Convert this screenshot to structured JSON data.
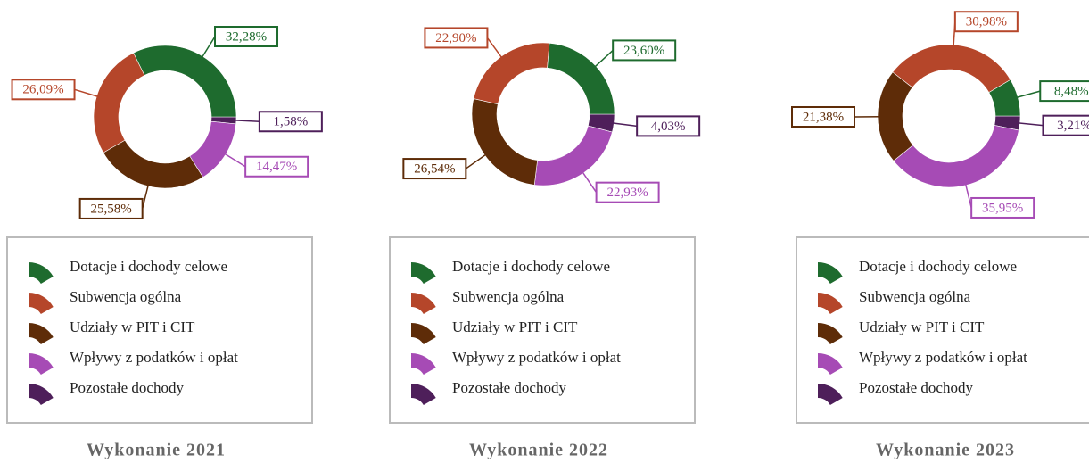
{
  "chart_data": [
    {
      "type": "pie",
      "donut": true,
      "title": "Wykonanie 2021",
      "categories": [
        "Dotacje i dochody celowe",
        "Subwencja ogólna",
        "Udziały w PIT i CIT",
        "Wpływy z podatków i opłat",
        "Pozostałe dochody"
      ],
      "values": [
        32.28,
        26.09,
        25.58,
        14.47,
        1.58
      ],
      "value_labels": [
        "32,28%",
        "26,09%",
        "25,58%",
        "14,47%",
        "1,58%"
      ],
      "colors": [
        "#1e6b2e",
        "#b5462a",
        "#5e2c08",
        "#a64bb5",
        "#4e1f5a"
      ]
    },
    {
      "type": "pie",
      "donut": true,
      "title": "Wykonanie 2022",
      "categories": [
        "Dotacje i dochody celowe",
        "Subwencja ogólna",
        "Udziały w PIT i CIT",
        "Wpływy z podatków i opłat",
        "Pozostałe dochody"
      ],
      "values": [
        23.6,
        22.9,
        26.54,
        22.93,
        4.03
      ],
      "value_labels": [
        "23,60%",
        "22,90%",
        "26,54%",
        "22,93%",
        "4,03%"
      ],
      "colors": [
        "#1e6b2e",
        "#b5462a",
        "#5e2c08",
        "#a64bb5",
        "#4e1f5a"
      ]
    },
    {
      "type": "pie",
      "donut": true,
      "title": "Wykonanie 2023",
      "categories": [
        "Dotacje i dochody celowe",
        "Subwencja ogólna",
        "Udziały w PIT i CIT",
        "Wpływy z podatków i opłat",
        "Pozostałe dochody"
      ],
      "values": [
        8.48,
        30.98,
        21.38,
        35.95,
        3.21
      ],
      "value_labels": [
        "8,48%",
        "30,98%",
        "21,38%",
        "35,95%",
        "3,21%"
      ],
      "colors": [
        "#1e6b2e",
        "#b5462a",
        "#5e2c08",
        "#a64bb5",
        "#4e1f5a"
      ]
    }
  ]
}
